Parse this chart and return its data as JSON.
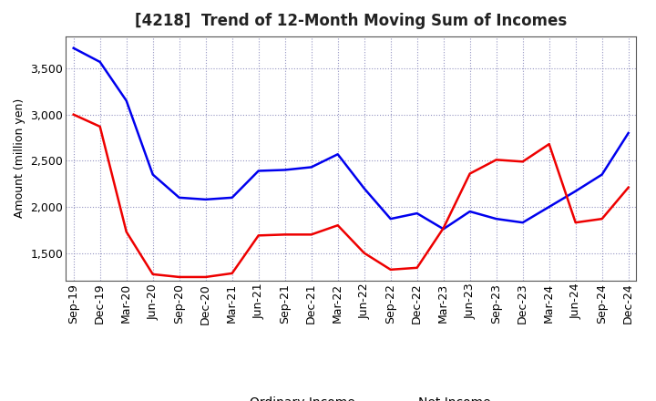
{
  "title": "[4218]  Trend of 12-Month Moving Sum of Incomes",
  "ylabel": "Amount (million yen)",
  "x_labels": [
    "Sep-19",
    "Dec-19",
    "Mar-20",
    "Jun-20",
    "Sep-20",
    "Dec-20",
    "Mar-21",
    "Jun-21",
    "Sep-21",
    "Dec-21",
    "Mar-22",
    "Jun-22",
    "Sep-22",
    "Dec-22",
    "Mar-23",
    "Jun-23",
    "Sep-23",
    "Dec-23",
    "Mar-24",
    "Jun-24",
    "Sep-24",
    "Dec-24"
  ],
  "ordinary_income": [
    3720,
    3570,
    3150,
    2350,
    2100,
    2080,
    2100,
    2390,
    2400,
    2430,
    2570,
    2200,
    1870,
    1930,
    1760,
    1950,
    1870,
    1830,
    2000,
    2170,
    2350,
    2800
  ],
  "net_income": [
    3000,
    2870,
    1730,
    1270,
    1240,
    1240,
    1280,
    1690,
    1700,
    1700,
    1800,
    1500,
    1320,
    1340,
    1770,
    2360,
    2510,
    2490,
    2680,
    1830,
    1870,
    2210
  ],
  "ordinary_color": "#0000EE",
  "net_color": "#EE0000",
  "ylim_min": 1200,
  "ylim_max": 3850,
  "yticks": [
    1500,
    2000,
    2500,
    3000,
    3500
  ],
  "background_color": "#FFFFFF",
  "grid_color": "#8888BB",
  "title_fontsize": 12,
  "axis_label_fontsize": 9,
  "tick_fontsize": 9,
  "legend_fontsize": 10,
  "linewidth": 1.8
}
